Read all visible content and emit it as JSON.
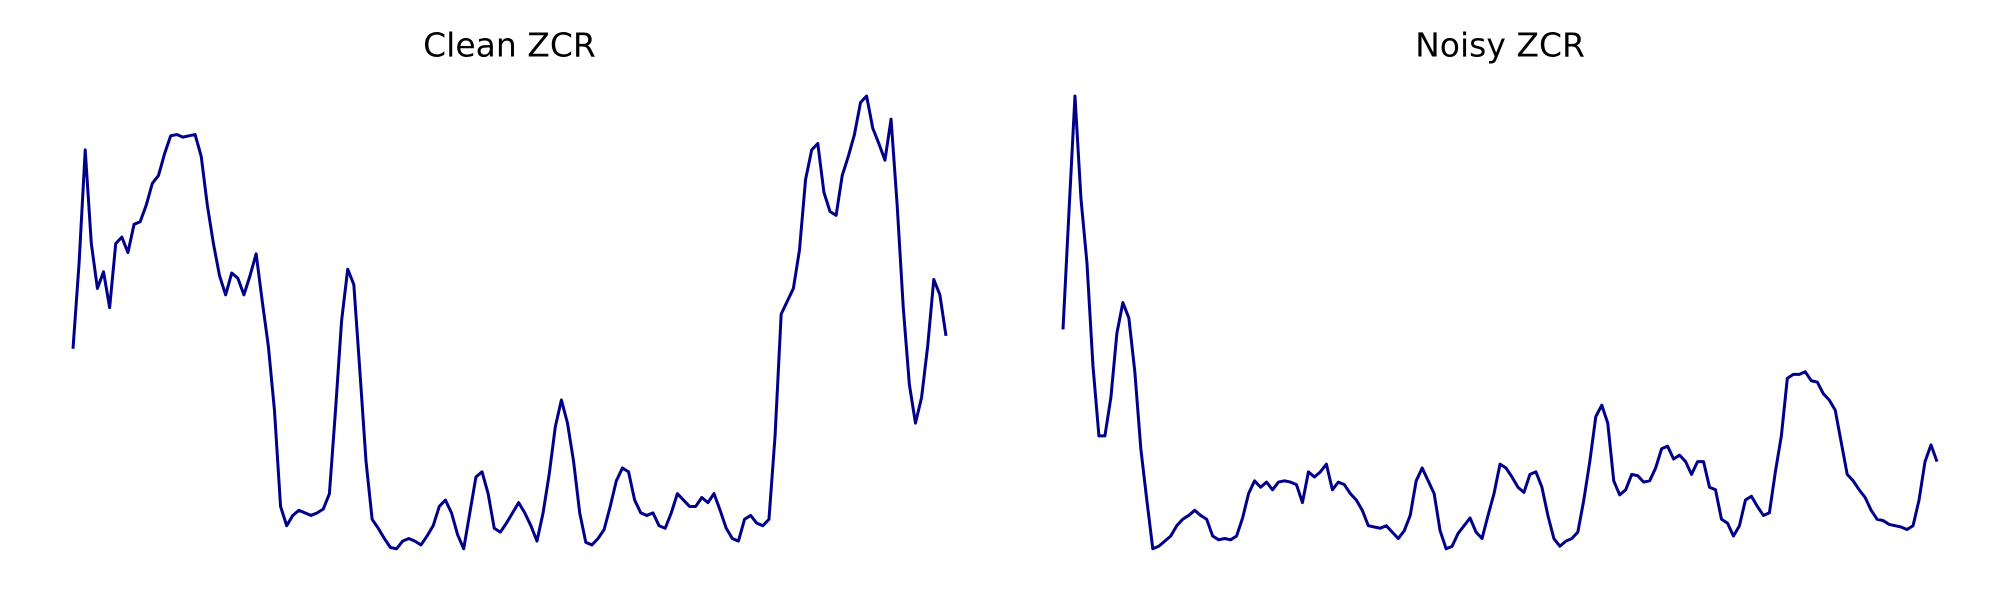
{
  "chart_data": [
    {
      "type": "line",
      "title": "Clean ZCR",
      "color": "#00008b",
      "ylim": [
        0,
        0.4
      ],
      "values": [
        0.178,
        0.245,
        0.333,
        0.26,
        0.225,
        0.238,
        0.21,
        0.26,
        0.265,
        0.253,
        0.275,
        0.277,
        0.29,
        0.307,
        0.313,
        0.33,
        0.344,
        0.345,
        0.343,
        0.344,
        0.345,
        0.328,
        0.29,
        0.26,
        0.235,
        0.22,
        0.237,
        0.233,
        0.22,
        0.235,
        0.252,
        0.215,
        0.18,
        0.13,
        0.055,
        0.04,
        0.048,
        0.052,
        0.05,
        0.048,
        0.05,
        0.053,
        0.065,
        0.13,
        0.2,
        0.24,
        0.228,
        0.16,
        0.09,
        0.045,
        0.038,
        0.03,
        0.023,
        0.022,
        0.028,
        0.03,
        0.028,
        0.025,
        0.032,
        0.04,
        0.055,
        0.06,
        0.05,
        0.033,
        0.022,
        0.05,
        0.078,
        0.082,
        0.065,
        0.038,
        0.035,
        0.042,
        0.05,
        0.058,
        0.05,
        0.04,
        0.028,
        0.05,
        0.08,
        0.117,
        0.138,
        0.12,
        0.09,
        0.05,
        0.027,
        0.025,
        0.03,
        0.037,
        0.055,
        0.075,
        0.085,
        0.082,
        0.06,
        0.05,
        0.048,
        0.05,
        0.04,
        0.038,
        0.05,
        0.065,
        0.06,
        0.055,
        0.055,
        0.062,
        0.058,
        0.065,
        0.052,
        0.038,
        0.03,
        0.028,
        0.045,
        0.048,
        0.042,
        0.04,
        0.045,
        0.11,
        0.205,
        0.215,
        0.225,
        0.255,
        0.31,
        0.333,
        0.338,
        0.3,
        0.285,
        0.282,
        0.313,
        0.328,
        0.345,
        0.37,
        0.375,
        0.35,
        0.338,
        0.325,
        0.357,
        0.29,
        0.21,
        0.15,
        0.12,
        0.14,
        0.18,
        0.232,
        0.22,
        0.188
      ]
    },
    {
      "type": "line",
      "title": "Noisy ZCR",
      "color": "#00008b",
      "ylim": [
        0,
        0.4
      ],
      "values": [
        0.193,
        0.285,
        0.375,
        0.295,
        0.245,
        0.165,
        0.11,
        0.11,
        0.14,
        0.19,
        0.214,
        0.202,
        0.16,
        0.1,
        0.06,
        0.022,
        0.024,
        0.028,
        0.032,
        0.04,
        0.045,
        0.048,
        0.052,
        0.048,
        0.045,
        0.032,
        0.029,
        0.03,
        0.029,
        0.032,
        0.046,
        0.065,
        0.075,
        0.07,
        0.074,
        0.068,
        0.074,
        0.075,
        0.074,
        0.072,
        0.058,
        0.082,
        0.078,
        0.082,
        0.088,
        0.068,
        0.074,
        0.072,
        0.065,
        0.06,
        0.052,
        0.04,
        0.039,
        0.038,
        0.04,
        0.035,
        0.03,
        0.036,
        0.048,
        0.075,
        0.085,
        0.075,
        0.065,
        0.036,
        0.022,
        0.024,
        0.034,
        0.04,
        0.046,
        0.035,
        0.03,
        0.048,
        0.065,
        0.088,
        0.085,
        0.078,
        0.07,
        0.066,
        0.08,
        0.082,
        0.07,
        0.048,
        0.03,
        0.024,
        0.028,
        0.03,
        0.035,
        0.06,
        0.09,
        0.125,
        0.134,
        0.12,
        0.075,
        0.064,
        0.068,
        0.08,
        0.079,
        0.074,
        0.075,
        0.085,
        0.1,
        0.102,
        0.092,
        0.095,
        0.09,
        0.08,
        0.09,
        0.09,
        0.07,
        0.068,
        0.045,
        0.042,
        0.032,
        0.04,
        0.06,
        0.063,
        0.055,
        0.048,
        0.05,
        0.082,
        0.11,
        0.155,
        0.158,
        0.158,
        0.16,
        0.153,
        0.152,
        0.143,
        0.138,
        0.13,
        0.105,
        0.08,
        0.075,
        0.068,
        0.062,
        0.052,
        0.045,
        0.044,
        0.041,
        0.04,
        0.039,
        0.037,
        0.04,
        0.06,
        0.09,
        0.103,
        0.09
      ]
    }
  ]
}
